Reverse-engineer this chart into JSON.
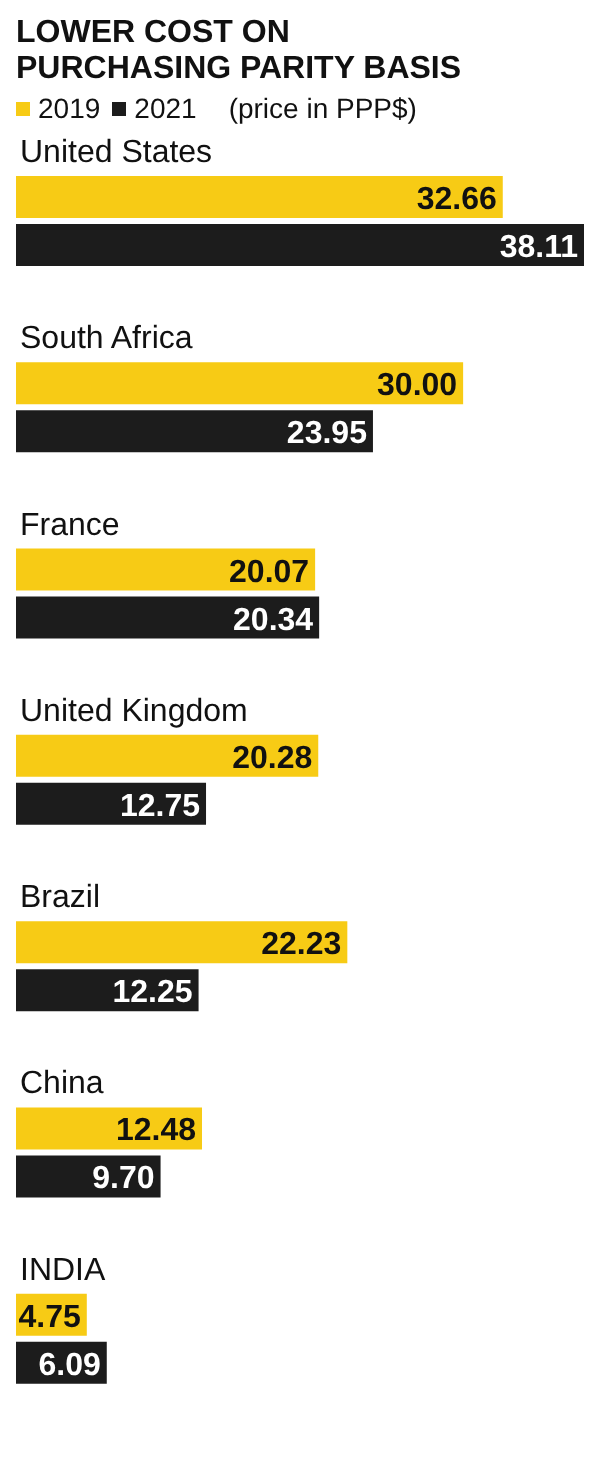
{
  "chart_data": {
    "type": "bar",
    "orientation": "horizontal",
    "title": "LOWER COST ON PURCHASING PARITY BASIS",
    "subtitle": "(price in PPP$)",
    "categories": [
      "United States",
      "South Africa",
      "France",
      "United Kingdom",
      "Brazil",
      "China",
      "INDIA"
    ],
    "series": [
      {
        "name": "2019",
        "color": "#f7cb15",
        "values": [
          32.66,
          30.0,
          20.07,
          20.28,
          22.23,
          12.48,
          4.75
        ],
        "value_labels": [
          "32.66",
          "30.00",
          "20.07",
          "20.28",
          "22.23",
          "12.48",
          "4.75"
        ]
      },
      {
        "name": "2021",
        "color": "#1c1c1c",
        "values": [
          38.11,
          23.95,
          20.34,
          12.75,
          12.25,
          9.7,
          6.09
        ],
        "value_labels": [
          "38.11",
          "23.95",
          "20.34",
          "12.75",
          "12.25",
          "9.70",
          "6.09"
        ]
      }
    ],
    "legend": "top left"
  }
}
